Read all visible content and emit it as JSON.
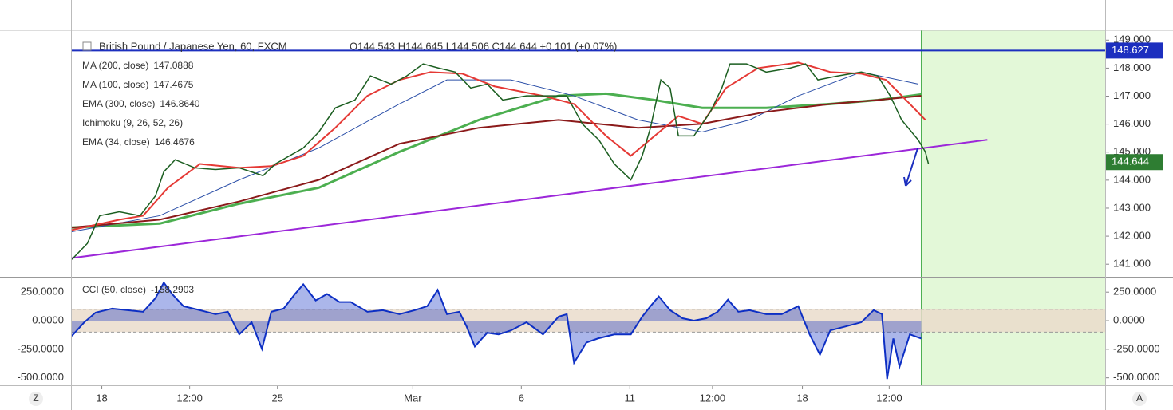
{
  "chart_data": [
    {
      "type": "line",
      "title": "British Pound / Japanese Yen, 60, FXCM",
      "subtitle": "O144.543  H144.645  L144.506  C144.644  +0.101 (+0.07%)",
      "xlim": [
        0,
        100
      ],
      "ylim": [
        140.55,
        149.35
      ],
      "yticks": [
        {
          "value": 141,
          "label": "141.000"
        },
        {
          "value": 142,
          "label": "142.000"
        },
        {
          "value": 143,
          "label": "143.000"
        },
        {
          "value": 144,
          "label": "144.000"
        },
        {
          "value": 145,
          "label": "145.000"
        },
        {
          "value": 146,
          "label": "146.000"
        },
        {
          "value": 147,
          "label": "147.000"
        },
        {
          "value": 148,
          "label": "148.000"
        },
        {
          "value": 149,
          "label": "149.000"
        }
      ],
      "highlight": {
        "x_from": 82.2,
        "color": "#e3f8d8",
        "edge_color": "#4caf50"
      },
      "trendline": {
        "x": [
          0,
          88.6
        ],
        "values": [
          141.22,
          145.44
        ],
        "color": "#9c27d9"
      },
      "price_tags": [
        {
          "value": 148.627,
          "color": "#1c2fbf",
          "line": true
        },
        {
          "value": 144.644,
          "color": "#2e7d32",
          "line": false
        }
      ],
      "series": [
        {
          "name": "MA (200, close)",
          "legend_value": "147.0888",
          "color": "#4caf50",
          "width": 3,
          "x": [
            0,
            8.5,
            16.2,
            23.9,
            31.7,
            39.4,
            47.1,
            51.7,
            56.4,
            61.0,
            67.2,
            73.4,
            78.0,
            82.2
          ],
          "values": [
            142.31,
            142.45,
            143.16,
            143.73,
            145.01,
            146.15,
            147.01,
            147.09,
            146.86,
            146.58,
            146.58,
            146.72,
            146.86,
            147.06
          ]
        },
        {
          "name": "MA (100, close)",
          "legend_value": "147.4675",
          "color": "#2b4fa8",
          "width": 1,
          "x": [
            0,
            8.5,
            16.2,
            23.9,
            31.7,
            36.3,
            42.5,
            48.6,
            54.8,
            61.0,
            65.6,
            70.3,
            76.4,
            81.9
          ],
          "values": [
            142.16,
            142.73,
            144.01,
            145.15,
            146.72,
            147.58,
            147.58,
            147.01,
            146.15,
            145.72,
            146.15,
            147.01,
            147.86,
            147.43
          ]
        },
        {
          "name": "EMA (300, close)",
          "legend_value": "146.8640",
          "color": "#8b1a1a",
          "width": 2,
          "x": [
            0,
            8.5,
            16.2,
            23.9,
            31.7,
            39.4,
            47.1,
            54.8,
            61.0,
            67.2,
            73.4,
            78.0,
            82.2
          ],
          "values": [
            142.31,
            142.59,
            143.24,
            144.01,
            145.3,
            145.87,
            146.15,
            145.87,
            146.01,
            146.44,
            146.72,
            146.86,
            147.01
          ]
        },
        {
          "name": "Ichimoku (9, 26, 52, 26)",
          "color": "#aaaaaa"
        },
        {
          "name": "EMA (34, close)",
          "legend_value": "146.4676",
          "color": "#e53935",
          "width": 2,
          "x": [
            0,
            4.6,
            6.9,
            9.3,
            12.4,
            16.2,
            19.3,
            22.4,
            25.5,
            28.6,
            31.7,
            34.7,
            37.8,
            40.9,
            45.6,
            48.6,
            51.7,
            54.1,
            56.4,
            58.7,
            61.0,
            63.3,
            66.4,
            70.3,
            73.4,
            76.4,
            78.8,
            81.1,
            82.6
          ],
          "values": [
            142.22,
            142.59,
            142.73,
            143.73,
            144.58,
            144.44,
            144.5,
            144.87,
            145.87,
            147.01,
            147.58,
            147.86,
            147.8,
            147.35,
            147.01,
            146.72,
            145.58,
            144.87,
            145.58,
            146.29,
            146.01,
            147.29,
            148.0,
            148.2,
            147.86,
            147.8,
            147.58,
            146.72,
            146.15
          ]
        },
        {
          "color": "#1b5e20",
          "width": 1.5,
          "x": [
            0,
            1.5,
            2.7,
            4.6,
            6.6,
            8.1,
            8.9,
            10.0,
            11.9,
            13.9,
            16.2,
            18.5,
            19.7,
            22.4,
            23.9,
            25.5,
            27.4,
            28.9,
            30.9,
            32.4,
            34.0,
            35.5,
            37.1,
            38.6,
            40.2,
            41.7,
            44.0,
            46.3,
            47.9,
            49.4,
            51.0,
            52.5,
            54.1,
            55.2,
            56.0,
            57.0,
            57.9,
            58.7,
            60.2,
            61.8,
            62.9,
            63.7,
            65.3,
            67.2,
            69.5,
            71.0,
            72.2,
            74.1,
            76.4,
            78.0,
            79.2,
            80.3,
            81.9,
            82.6,
            82.9
          ],
          "values": [
            141.17,
            141.74,
            142.73,
            142.87,
            142.73,
            143.44,
            144.3,
            144.73,
            144.44,
            144.38,
            144.44,
            144.16,
            144.58,
            145.15,
            145.72,
            146.58,
            146.86,
            147.72,
            147.43,
            147.72,
            148.15,
            148.0,
            147.86,
            147.29,
            147.43,
            146.86,
            147.01,
            147.01,
            147.01,
            146.01,
            145.44,
            144.58,
            144.01,
            144.87,
            145.87,
            147.58,
            147.29,
            145.58,
            145.58,
            146.44,
            147.29,
            148.15,
            148.15,
            147.86,
            148.0,
            148.15,
            147.58,
            147.72,
            147.86,
            147.72,
            147.01,
            146.15,
            145.44,
            145.01,
            144.58
          ]
        }
      ]
    },
    {
      "type": "area",
      "xlim": [
        0,
        100
      ],
      "ylim": [
        -565,
        377
      ],
      "yticks": [
        {
          "value": 250,
          "label": "250.0000"
        },
        {
          "value": 0,
          "label": "0.0000"
        },
        {
          "value": -250,
          "label": "-250.0000"
        },
        {
          "value": -500,
          "label": "-500.0000"
        }
      ],
      "band": {
        "range": [
          -100,
          100
        ],
        "color": "#eadccb"
      },
      "xticks": [
        {
          "value": 2.9,
          "label": "18"
        },
        {
          "value": 11.4,
          "label": "12:00"
        },
        {
          "value": 19.9,
          "label": "25"
        },
        {
          "value": 33.0,
          "label": "Mar"
        },
        {
          "value": 43.5,
          "label": "6"
        },
        {
          "value": 54.0,
          "label": "11"
        },
        {
          "value": 62.0,
          "label": "12:00"
        },
        {
          "value": 70.7,
          "label": "18"
        },
        {
          "value": 79.1,
          "label": "12:00"
        }
      ],
      "series": [
        {
          "name": "CCI (50, close)",
          "legend_value": "-158.2903",
          "color": "#0d2fc4",
          "x": [
            0,
            1.2,
            2.3,
            3.9,
            5.4,
            6.9,
            8.1,
            8.9,
            9.7,
            10.8,
            12.4,
            13.9,
            15.1,
            16.2,
            17.4,
            18.4,
            19.3,
            20.5,
            21.6,
            22.4,
            23.6,
            24.7,
            25.9,
            27.0,
            28.6,
            30.1,
            31.7,
            33.2,
            34.4,
            35.4,
            36.3,
            37.5,
            38.2,
            39.0,
            40.2,
            41.3,
            42.5,
            44.0,
            45.6,
            47.1,
            47.9,
            48.6,
            49.8,
            50.9,
            52.5,
            54.1,
            55.2,
            56.0,
            56.8,
            57.9,
            59.1,
            60.2,
            61.4,
            62.5,
            63.5,
            64.5,
            65.6,
            67.2,
            68.7,
            70.3,
            71.4,
            72.4,
            73.4,
            74.9,
            76.4,
            77.6,
            78.4,
            78.9,
            79.5,
            80.1,
            81.1,
            82.2
          ],
          "values": [
            -134,
            -14,
            71,
            106,
            92,
            78,
            198,
            333,
            234,
            127,
            92,
            57,
            78,
            -120,
            -14,
            -248,
            78,
            106,
            234,
            318,
            177,
            234,
            163,
            163,
            78,
            92,
            57,
            92,
            127,
            269,
            57,
            78,
            -50,
            -226,
            -106,
            -120,
            -85,
            -14,
            -120,
            35,
            57,
            -368,
            -191,
            -156,
            -120,
            -120,
            35,
            127,
            212,
            92,
            21,
            0,
            21,
            78,
            184,
            78,
            92,
            57,
            57,
            127,
            -120,
            -297,
            -85,
            -50,
            -14,
            92,
            57,
            -510,
            -156,
            -403,
            -120,
            -156
          ]
        }
      ]
    }
  ],
  "ui": {
    "left_button": "Z",
    "right_button": "A"
  }
}
